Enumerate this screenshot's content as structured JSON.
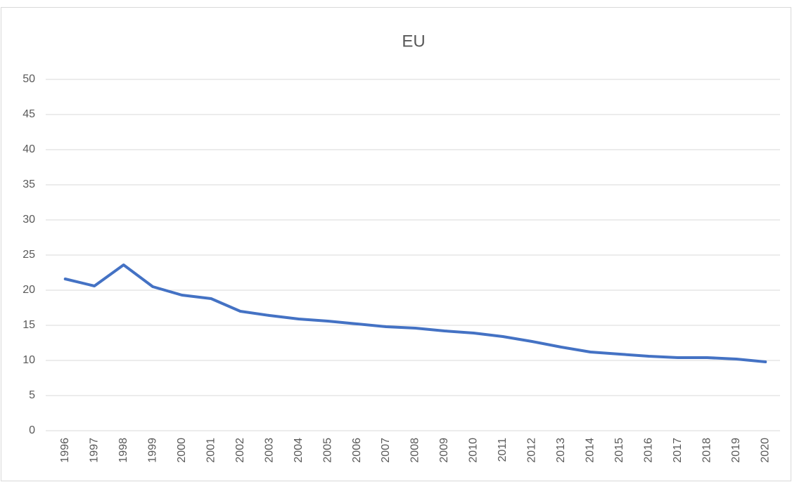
{
  "chart_data": {
    "type": "line",
    "title": "EU",
    "categories": [
      "1996",
      "1997",
      "1998",
      "1999",
      "2000",
      "2001",
      "2002",
      "2003",
      "2004",
      "2005",
      "2006",
      "2007",
      "2008",
      "2009",
      "2010",
      "2011",
      "2012",
      "2013",
      "2014",
      "2015",
      "2016",
      "2017",
      "2018",
      "2019",
      "2020"
    ],
    "series": [
      {
        "color": "#4472c4",
        "values": [
          21.6,
          20.6,
          23.6,
          20.5,
          19.3,
          18.8,
          17.0,
          16.4,
          15.9,
          15.6,
          15.2,
          14.8,
          14.6,
          14.2,
          13.9,
          13.4,
          12.7,
          11.9,
          11.2,
          10.9,
          10.6,
          10.4,
          10.4,
          10.2,
          9.8
        ]
      }
    ],
    "ylim": [
      0,
      50
    ],
    "yticks": [
      0,
      5,
      10,
      15,
      20,
      25,
      30,
      35,
      40,
      45,
      50
    ],
    "grid": true
  }
}
